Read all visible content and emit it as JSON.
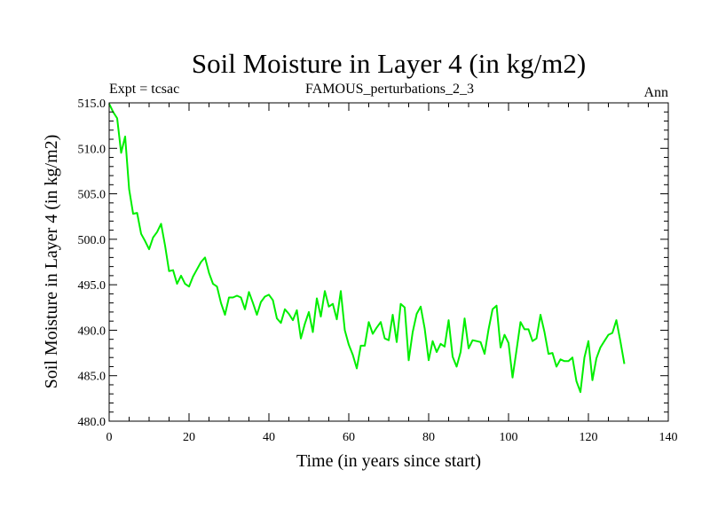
{
  "chart_data": {
    "type": "line",
    "title": "Soil Moisture in Layer 4 (in kg/m2)",
    "subtitle_left": "Expt = tcsac",
    "subtitle_center": "FAMOUS_perturbations_2_3",
    "subtitle_right": "Ann",
    "xlabel": "Time (in years since start)",
    "ylabel": "Soil Moisture in Layer 4 (in kg/m2)",
    "xlim": [
      0,
      140
    ],
    "ylim": [
      480,
      515
    ],
    "xticks": [
      0,
      20,
      40,
      60,
      80,
      100,
      120,
      140
    ],
    "xtick_labels": [
      "0",
      "20",
      "40",
      "60",
      "80",
      "100",
      "120",
      "140"
    ],
    "yticks": [
      480,
      485,
      490,
      495,
      500,
      505,
      510,
      515
    ],
    "ytick_labels": [
      "480.0",
      "485.0",
      "490.0",
      "495.0",
      "500.0",
      "505.0",
      "510.0",
      "515.0"
    ],
    "grid": false,
    "series": [
      {
        "name": "tcsac",
        "color": "#00ee00",
        "x": [
          0,
          1,
          2,
          3,
          4,
          5,
          6,
          7,
          8,
          9,
          10,
          11,
          12,
          13,
          14,
          15,
          16,
          17,
          18,
          19,
          20,
          21,
          22,
          23,
          24,
          25,
          26,
          27,
          28,
          29,
          30,
          31,
          32,
          33,
          34,
          35,
          36,
          37,
          38,
          39,
          40,
          41,
          42,
          43,
          44,
          45,
          46,
          47,
          48,
          49,
          50,
          51,
          52,
          53,
          54,
          55,
          56,
          57,
          58,
          59,
          60,
          61,
          62,
          63,
          64,
          65,
          66,
          67,
          68,
          69,
          70,
          71,
          72,
          73,
          74,
          75,
          76,
          77,
          78,
          79,
          80,
          81,
          82,
          83,
          84,
          85,
          86,
          87,
          88,
          89,
          90,
          91,
          92,
          93,
          94,
          95,
          96,
          97,
          98,
          99,
          100,
          101,
          102,
          103,
          104,
          105,
          106,
          107,
          108,
          109,
          110,
          111,
          112,
          113,
          114,
          115,
          116,
          117,
          118,
          119,
          120,
          121,
          122,
          123,
          124,
          125,
          126,
          127,
          128,
          129
        ],
        "values": [
          514.9,
          514.0,
          513.3,
          509.5,
          511.3,
          505.5,
          502.8,
          502.9,
          500.6,
          499.8,
          498.9,
          500.2,
          500.8,
          501.7,
          499.3,
          496.5,
          496.6,
          495.1,
          496.0,
          495.1,
          494.8,
          495.9,
          496.7,
          497.5,
          498.0,
          496.3,
          495.1,
          494.8,
          493.0,
          491.7,
          493.6,
          493.6,
          493.8,
          493.6,
          492.3,
          494.2,
          493.0,
          491.7,
          493.1,
          493.7,
          493.9,
          493.3,
          491.3,
          490.8,
          492.3,
          491.8,
          491.1,
          492.2,
          489.1,
          490.7,
          492.0,
          489.8,
          493.5,
          491.5,
          494.3,
          492.6,
          492.9,
          491.2,
          494.3,
          490.0,
          488.4,
          487.3,
          485.8,
          488.3,
          488.3,
          490.9,
          489.6,
          490.3,
          490.9,
          489.1,
          488.9,
          491.7,
          488.7,
          492.9,
          492.5,
          486.7,
          489.8,
          491.8,
          492.6,
          490.2,
          486.7,
          488.8,
          487.6,
          488.5,
          488.2,
          491.1,
          487.1,
          486.0,
          487.6,
          491.3,
          488.0,
          488.9,
          488.8,
          488.7,
          487.4,
          490.1,
          492.3,
          492.7,
          488.1,
          489.5,
          488.6,
          484.8,
          487.8,
          490.9,
          490.1,
          490.1,
          488.8,
          489.1,
          491.7,
          489.8,
          487.4,
          487.5,
          486.0,
          486.8,
          486.6,
          486.6,
          487.0,
          484.4,
          483.2,
          487.0,
          488.8,
          484.5,
          486.9,
          488.1,
          488.8,
          489.5,
          489.7,
          491.1,
          488.8,
          486.3
        ]
      }
    ]
  }
}
